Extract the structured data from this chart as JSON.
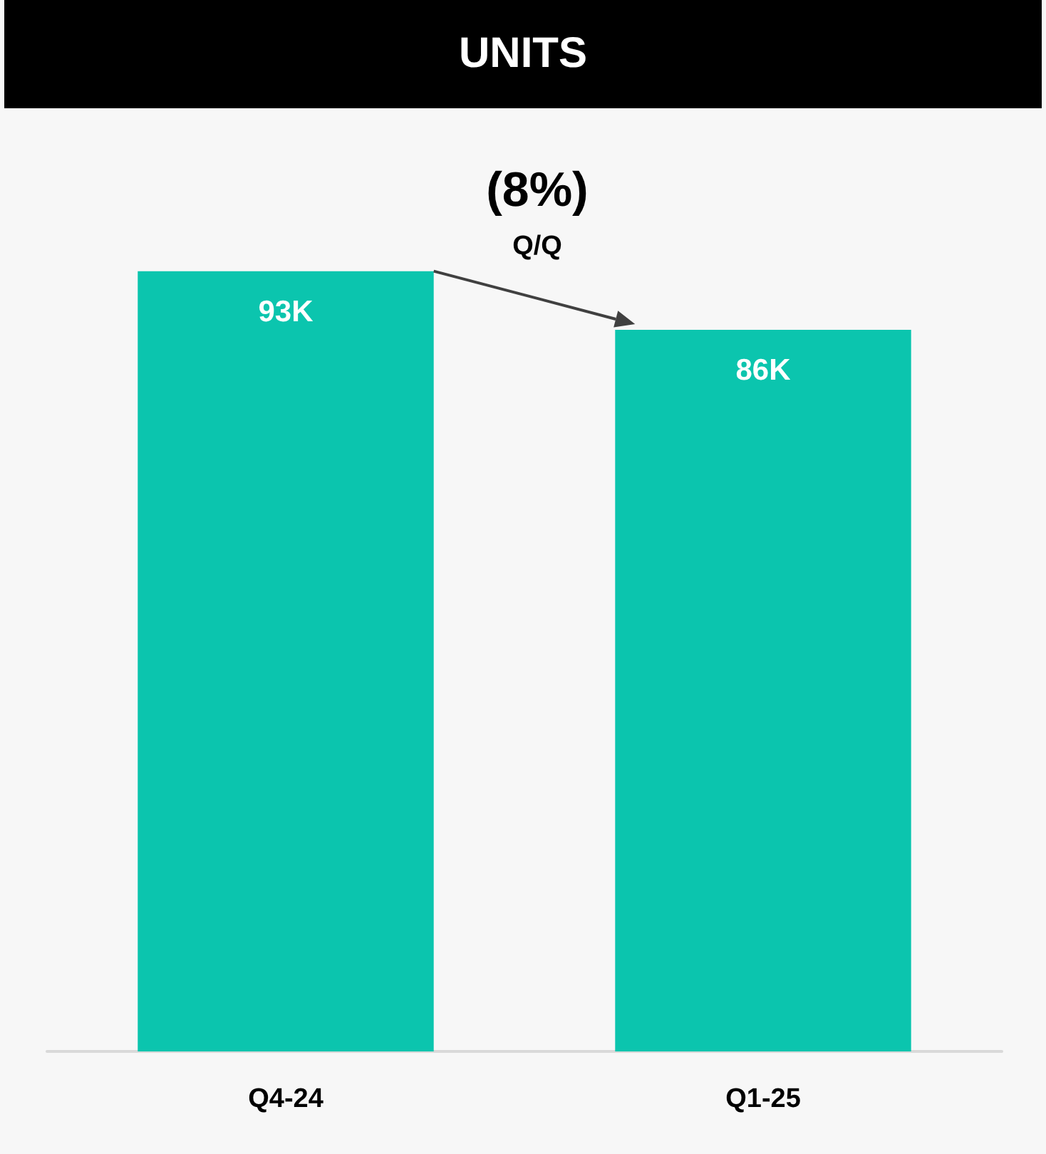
{
  "chart_data": {
    "type": "bar",
    "title": "UNITS",
    "categories": [
      "Q4-24",
      "Q1-25"
    ],
    "values": [
      93,
      86
    ],
    "value_labels": [
      "93K",
      "86K"
    ],
    "color": "#0bc5ae",
    "tick_labels": "x",
    "annotations": [
      "(8%)",
      "Q/Q"
    ]
  }
}
